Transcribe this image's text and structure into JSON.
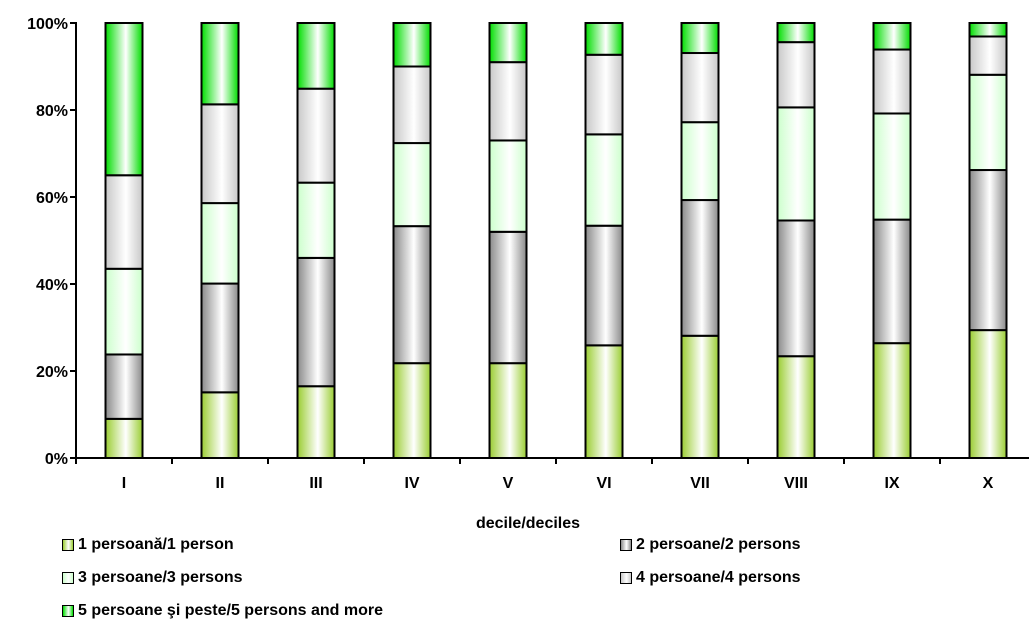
{
  "chart_data": {
    "type": "bar",
    "stacked": true,
    "percent": true,
    "xlabel": "decile/deciles",
    "ylabel": "",
    "categories": [
      "I",
      "II",
      "III",
      "IV",
      "V",
      "VI",
      "VII",
      "VIII",
      "IX",
      "X"
    ],
    "yticks": [
      "0%",
      "20%",
      "40%",
      "60%",
      "80%",
      "100%"
    ],
    "ylim": [
      0,
      100
    ],
    "grid": false,
    "legend_position": "bottom",
    "series": [
      {
        "name": "1 persoană/1 person",
        "color": "#9acd32",
        "values": [
          9.0,
          15.1,
          16.5,
          21.8,
          21.8,
          25.9,
          28.1,
          23.4,
          26.4,
          29.4
        ]
      },
      {
        "name": "2 persoane/2 persons",
        "color": "#8a8a8a",
        "values": [
          14.8,
          25.0,
          29.5,
          31.5,
          30.2,
          27.5,
          31.2,
          31.2,
          28.4,
          36.8
        ]
      },
      {
        "name": "3 persoane/3 persons",
        "color": "#ccffcc",
        "values": [
          19.7,
          18.5,
          17.3,
          19.1,
          21.0,
          21.0,
          17.9,
          26.0,
          24.4,
          21.9
        ]
      },
      {
        "name": "4 persoane/4 persons",
        "color": "#c8c8c8",
        "values": [
          21.5,
          22.7,
          21.6,
          17.6,
          18.0,
          18.3,
          15.9,
          15.0,
          14.7,
          8.8
        ]
      },
      {
        "name": "5 persoane şi peste/5 persons and more",
        "color": "#00dd00",
        "values": [
          35.0,
          18.7,
          15.1,
          10.0,
          9.0,
          7.3,
          6.9,
          4.4,
          6.1,
          3.1
        ]
      }
    ]
  }
}
